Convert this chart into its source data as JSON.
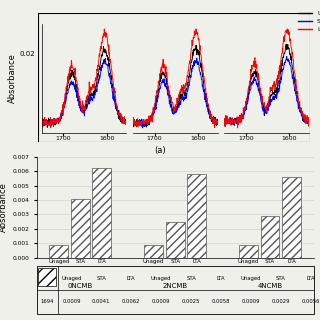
{
  "top_title": "(a)",
  "spectrum_groups": [
    "0NCMB",
    "2NCMB",
    "4NCMB"
  ],
  "legend_labels": [
    "Unaged",
    "STA",
    "LTA"
  ],
  "line_colors": [
    "black",
    "blue",
    "red"
  ],
  "ylabel_top": "Absorbance",
  "scale_label": "0.02",
  "bar_groups": [
    "0NCMB",
    "2NCMB",
    "4NCMB"
  ],
  "bar_categories": [
    "Unaged",
    "STA",
    "LTA"
  ],
  "bar_values": [
    [
      0.0009,
      0.0041,
      0.0062
    ],
    [
      0.0009,
      0.0025,
      0.0058
    ],
    [
      0.0009,
      0.0029,
      0.0056
    ]
  ],
  "bar_ylim": [
    0,
    0.007
  ],
  "bar_yticks": [
    0,
    0.001,
    0.002,
    0.003,
    0.004,
    0.005,
    0.006,
    0.007
  ],
  "ylabel_bottom": "Absorbance",
  "table_row_label": "1694",
  "table_values": [
    [
      "0.0009",
      "0.0041",
      "0.0062"
    ],
    [
      "0.0009",
      "0.0025",
      "0.0058"
    ],
    [
      "0.0009",
      "0.0029",
      "0.0056"
    ]
  ],
  "background_color": "#f0f0eb"
}
